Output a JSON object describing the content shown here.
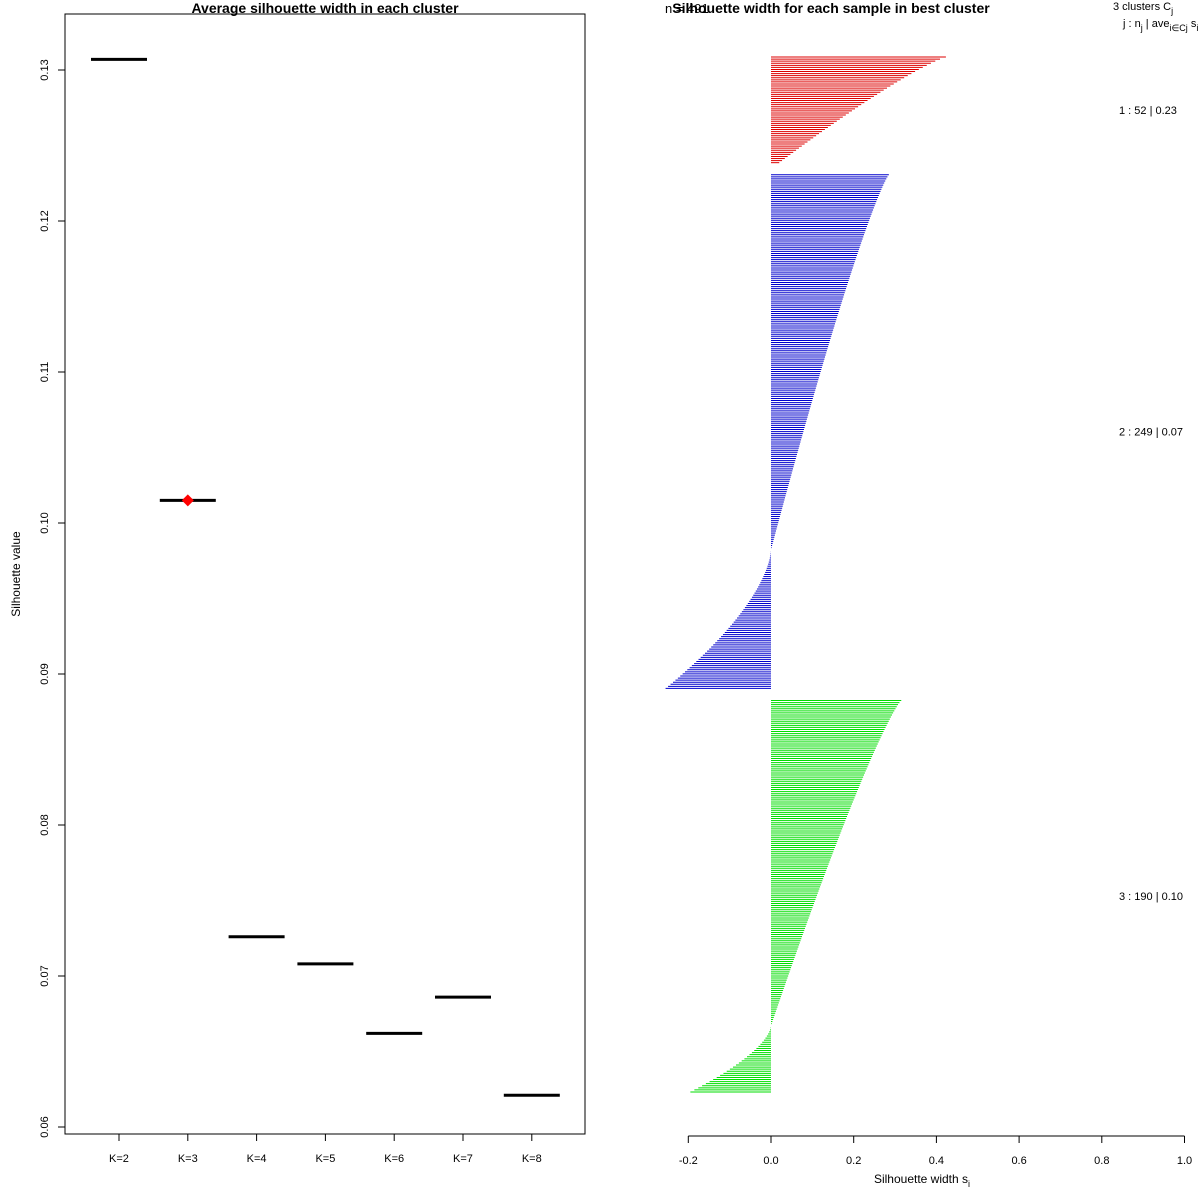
{
  "chart_data": [
    {
      "type": "scatter",
      "title": "Average silhouette width in each cluster",
      "xlabel": "",
      "ylabel": "Silhouette value",
      "ylim": [
        0.06,
        0.133
      ],
      "yticks": [
        0.06,
        0.07,
        0.08,
        0.09,
        0.1,
        0.11,
        0.12,
        0.13
      ],
      "ytick_labels": [
        "0.06",
        "0.07",
        "0.08",
        "0.09",
        "0.10",
        "0.11",
        "0.12",
        "0.13"
      ],
      "categories": [
        "K=2",
        "K=3",
        "K=4",
        "K=5",
        "K=6",
        "K=7",
        "K=8"
      ],
      "values": [
        0.1307,
        0.1015,
        0.0726,
        0.0708,
        0.0662,
        0.0686,
        0.0621
      ],
      "best": "K=3",
      "colors": {
        "segment": "#000000",
        "best_marker": "#ff0000"
      }
    },
    {
      "type": "bar",
      "orientation": "horizontal",
      "title": "Silhouette width for each sample in best cluster",
      "title_overlap_text": "n = 491",
      "xlabel": "Silhouette width s",
      "xlabel_sub": "i",
      "xlim": [
        -0.2,
        1.0
      ],
      "xticks": [
        -0.2,
        0.0,
        0.2,
        0.4,
        0.6,
        0.8,
        1.0
      ],
      "xtick_labels": [
        "-0.2",
        "0.0",
        "0.2",
        "0.4",
        "0.6",
        "0.8",
        "1.0"
      ],
      "legend_header": {
        "line1": "3  clusters  C",
        "line1_sub": "j",
        "line2_prefix": "j :  n",
        "line2_sub": "j",
        "line2_mid": " | ave",
        "line2_sub2": "i∈Cj",
        "line2_suffix": "  s",
        "line2_sub3": "i"
      },
      "clusters": [
        {
          "id": 1,
          "n": 52,
          "avg": "0.23",
          "label": "1 :   52  |  0.23",
          "color": "#dd0000",
          "max": 0.423,
          "min": 0.02,
          "neg_min": 0.0
        },
        {
          "id": 2,
          "n": 249,
          "avg": "0.07",
          "label": "2 :  249  |  0.07",
          "color": "#0000cc",
          "max": 0.285,
          "min": 0.0,
          "neg_min": -0.255
        },
        {
          "id": 3,
          "n": 190,
          "avg": "0.10",
          "label": "3 :  190  |  0.10",
          "color": "#00dd00",
          "max": 0.315,
          "min": 0.0,
          "neg_min": -0.195
        }
      ]
    }
  ]
}
